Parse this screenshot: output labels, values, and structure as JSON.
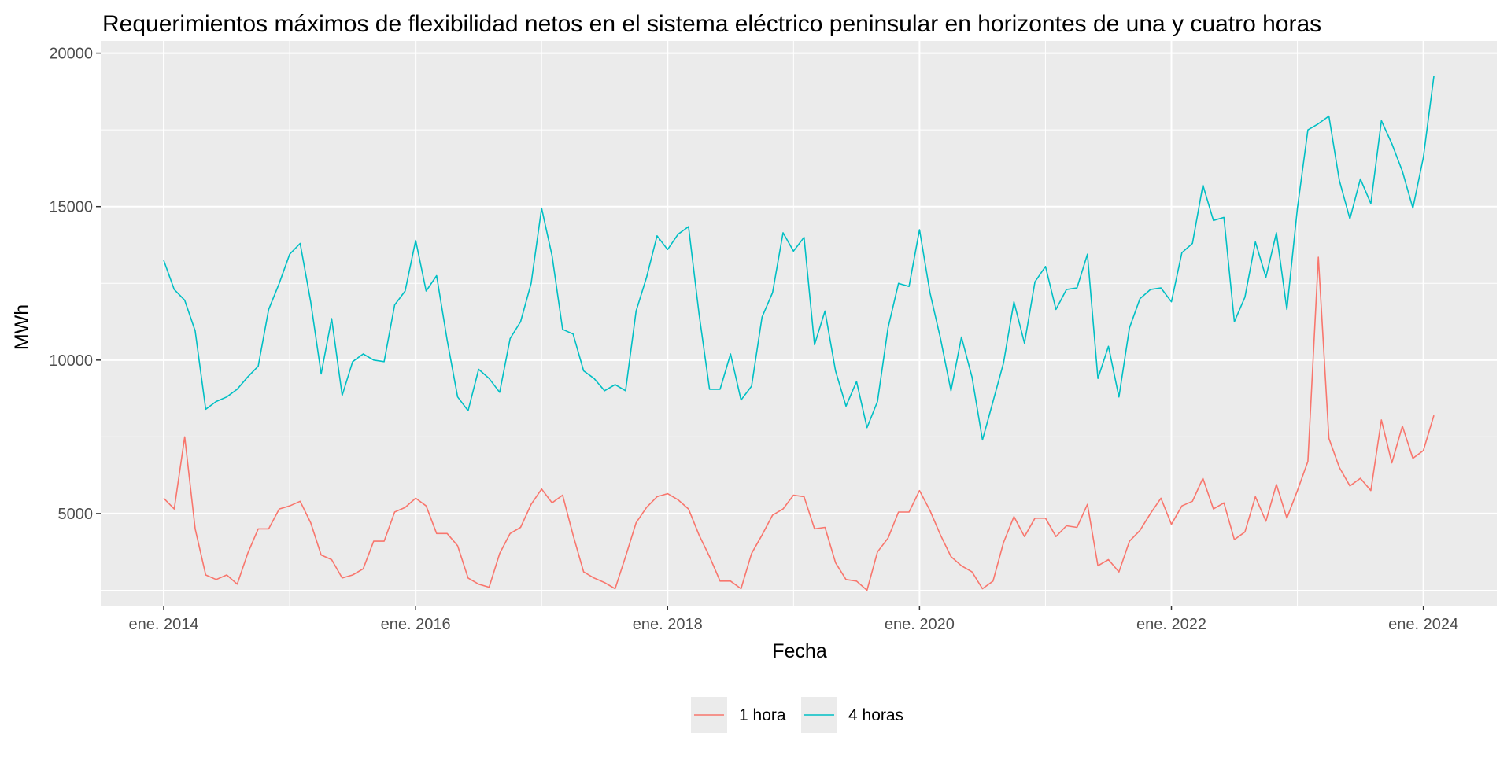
{
  "chart_data": {
    "type": "line",
    "title": "Requerimientos máximos de flexibilidad netos en el sistema eléctrico peninsular en horizontes de una y cuatro horas",
    "xlabel": "Fecha",
    "ylabel": "MWh",
    "x_ticks": [
      "ene. 2014",
      "ene. 2016",
      "ene. 2018",
      "ene. 2020",
      "ene. 2022",
      "ene. 2024"
    ],
    "y_ticks": [
      5000,
      10000,
      15000,
      20000
    ],
    "ylim": [
      2000,
      20400
    ],
    "xlim": [
      "2013-07",
      "2024-08"
    ],
    "grid": true,
    "legend_position": "bottom",
    "x": [
      "2014-01",
      "2014-02",
      "2014-03",
      "2014-04",
      "2014-05",
      "2014-06",
      "2014-07",
      "2014-08",
      "2014-09",
      "2014-10",
      "2014-11",
      "2014-12",
      "2015-01",
      "2015-02",
      "2015-03",
      "2015-04",
      "2015-05",
      "2015-06",
      "2015-07",
      "2015-08",
      "2015-09",
      "2015-10",
      "2015-11",
      "2015-12",
      "2016-01",
      "2016-02",
      "2016-03",
      "2016-04",
      "2016-05",
      "2016-06",
      "2016-07",
      "2016-08",
      "2016-09",
      "2016-10",
      "2016-11",
      "2016-12",
      "2017-01",
      "2017-02",
      "2017-03",
      "2017-04",
      "2017-05",
      "2017-06",
      "2017-07",
      "2017-08",
      "2017-09",
      "2017-10",
      "2017-11",
      "2017-12",
      "2018-01",
      "2018-02",
      "2018-03",
      "2018-04",
      "2018-05",
      "2018-06",
      "2018-07",
      "2018-08",
      "2018-09",
      "2018-10",
      "2018-11",
      "2018-12",
      "2019-01",
      "2019-02",
      "2019-03",
      "2019-04",
      "2019-05",
      "2019-06",
      "2019-07",
      "2019-08",
      "2019-09",
      "2019-10",
      "2019-11",
      "2019-12",
      "2020-01",
      "2020-02",
      "2020-03",
      "2020-04",
      "2020-05",
      "2020-06",
      "2020-07",
      "2020-08",
      "2020-09",
      "2020-10",
      "2020-11",
      "2020-12",
      "2021-01",
      "2021-02",
      "2021-03",
      "2021-04",
      "2021-05",
      "2021-06",
      "2021-07",
      "2021-08",
      "2021-09",
      "2021-10",
      "2021-11",
      "2021-12",
      "2022-01",
      "2022-02",
      "2022-03",
      "2022-04",
      "2022-05",
      "2022-06",
      "2022-07",
      "2022-08",
      "2022-09",
      "2022-10",
      "2022-11",
      "2022-12",
      "2023-01",
      "2023-02",
      "2023-03",
      "2023-04",
      "2023-05",
      "2023-06",
      "2023-07",
      "2023-08",
      "2023-09",
      "2023-10",
      "2023-11",
      "2023-12",
      "2024-01",
      "2024-02"
    ],
    "series": [
      {
        "name": "1 hora",
        "color": "#F8766D",
        "values": [
          5500,
          5150,
          7500,
          4500,
          3000,
          2850,
          3000,
          2700,
          3700,
          4500,
          4500,
          5150,
          5250,
          5400,
          4700,
          3650,
          3500,
          2900,
          3000,
          3200,
          4100,
          4100,
          5050,
          5200,
          5500,
          5250,
          4350,
          4350,
          3950,
          2900,
          2700,
          2600,
          3700,
          4350,
          4550,
          5300,
          5800,
          5350,
          5600,
          4300,
          3100,
          2900,
          2750,
          2550,
          3600,
          4700,
          5200,
          5550,
          5650,
          5450,
          5150,
          4300,
          3600,
          2800,
          2800,
          2550,
          3700,
          4300,
          4950,
          5150,
          5600,
          5550,
          4500,
          4550,
          3400,
          2850,
          2800,
          2500,
          3750,
          4200,
          5050,
          5050,
          5750,
          5100,
          4300,
          3600,
          3300,
          3100,
          2550,
          2800,
          4050,
          4900,
          4250,
          4850,
          4850,
          4250,
          4600,
          4550,
          5300,
          3300,
          3500,
          3100,
          4100,
          4450,
          5000,
          5500,
          4650,
          5250,
          5400,
          6150,
          5150,
          5350,
          4150,
          4400,
          5550,
          4750,
          5950,
          4850,
          5750,
          6700,
          13350,
          7450,
          6500,
          5900,
          6150,
          5750,
          8050,
          6650,
          7850,
          6800,
          7050,
          8200
        ]
      },
      {
        "name": "4 horas",
        "color": "#00BFC4",
        "values": [
          13250,
          12300,
          11950,
          10950,
          8400,
          8650,
          8800,
          9050,
          9450,
          9800,
          11650,
          12500,
          13450,
          13800,
          11900,
          9550,
          11350,
          8850,
          9950,
          10200,
          10000,
          9950,
          11800,
          12250,
          13900,
          12250,
          12750,
          10650,
          8800,
          8350,
          9700,
          9400,
          8950,
          10700,
          11250,
          12500,
          14950,
          13400,
          11000,
          10850,
          9650,
          9400,
          9000,
          9200,
          9000,
          11600,
          12700,
          14050,
          13600,
          14100,
          14350,
          11500,
          9050,
          9050,
          10200,
          8700,
          9150,
          11400,
          12200,
          14150,
          13550,
          14000,
          10500,
          11600,
          9650,
          8500,
          9300,
          7800,
          8650,
          11050,
          12500,
          12400,
          14250,
          12200,
          10700,
          9000,
          10750,
          9450,
          7400,
          8650,
          9900,
          11900,
          10550,
          12550,
          13050,
          11650,
          12300,
          12350,
          13450,
          9400,
          10450,
          8800,
          11050,
          12000,
          12300,
          12350,
          11900,
          13500,
          13800,
          15700,
          14550,
          14650,
          11250,
          12050,
          13850,
          12700,
          14150,
          11650,
          14950,
          17500,
          17700,
          17950,
          15850,
          14600,
          15900,
          15100,
          17800,
          17050,
          16150,
          14950,
          16600,
          19250
        ]
      }
    ]
  }
}
